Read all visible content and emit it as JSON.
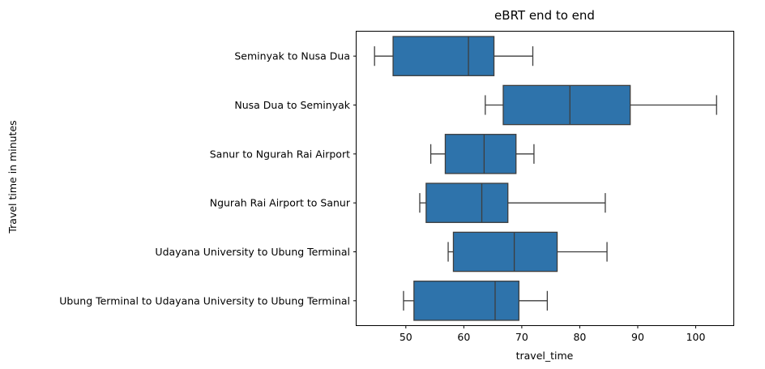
{
  "chart_data": {
    "type": "box",
    "orientation": "horizontal",
    "title": "eBRT end to end",
    "xlabel": "travel_time",
    "ylabel": "Travel time in minutes",
    "xlim": [
      41.5,
      106.5
    ],
    "xticks": [
      50,
      60,
      70,
      80,
      90,
      100
    ],
    "grid": false,
    "legend": "none",
    "box_color": "#2e73ab",
    "line_color": "#3d3d3d",
    "categories": [
      "Seminyak to Nusa Dua",
      "Nusa Dua to Seminyak",
      "Sanur to Ngurah Rai Airport",
      "Ngurah Rai Airport to Sanur",
      "Udayana University to Ubung Terminal",
      "Ubung Terminal to Udayana University to Ubung Terminal"
    ],
    "boxes": [
      {
        "whislo": 44.6,
        "q1": 47.8,
        "med": 60.8,
        "q3": 65.2,
        "whishi": 71.9
      },
      {
        "whislo": 63.7,
        "q1": 66.8,
        "med": 78.3,
        "q3": 88.7,
        "whishi": 103.6
      },
      {
        "whislo": 54.3,
        "q1": 56.8,
        "med": 63.5,
        "q3": 69.0,
        "whishi": 72.1
      },
      {
        "whislo": 52.4,
        "q1": 53.5,
        "med": 63.1,
        "q3": 67.6,
        "whishi": 84.4
      },
      {
        "whislo": 57.3,
        "q1": 58.2,
        "med": 68.7,
        "q3": 76.1,
        "whishi": 84.7
      },
      {
        "whislo": 49.6,
        "q1": 51.4,
        "med": 65.4,
        "q3": 69.5,
        "whishi": 74.4
      }
    ]
  }
}
